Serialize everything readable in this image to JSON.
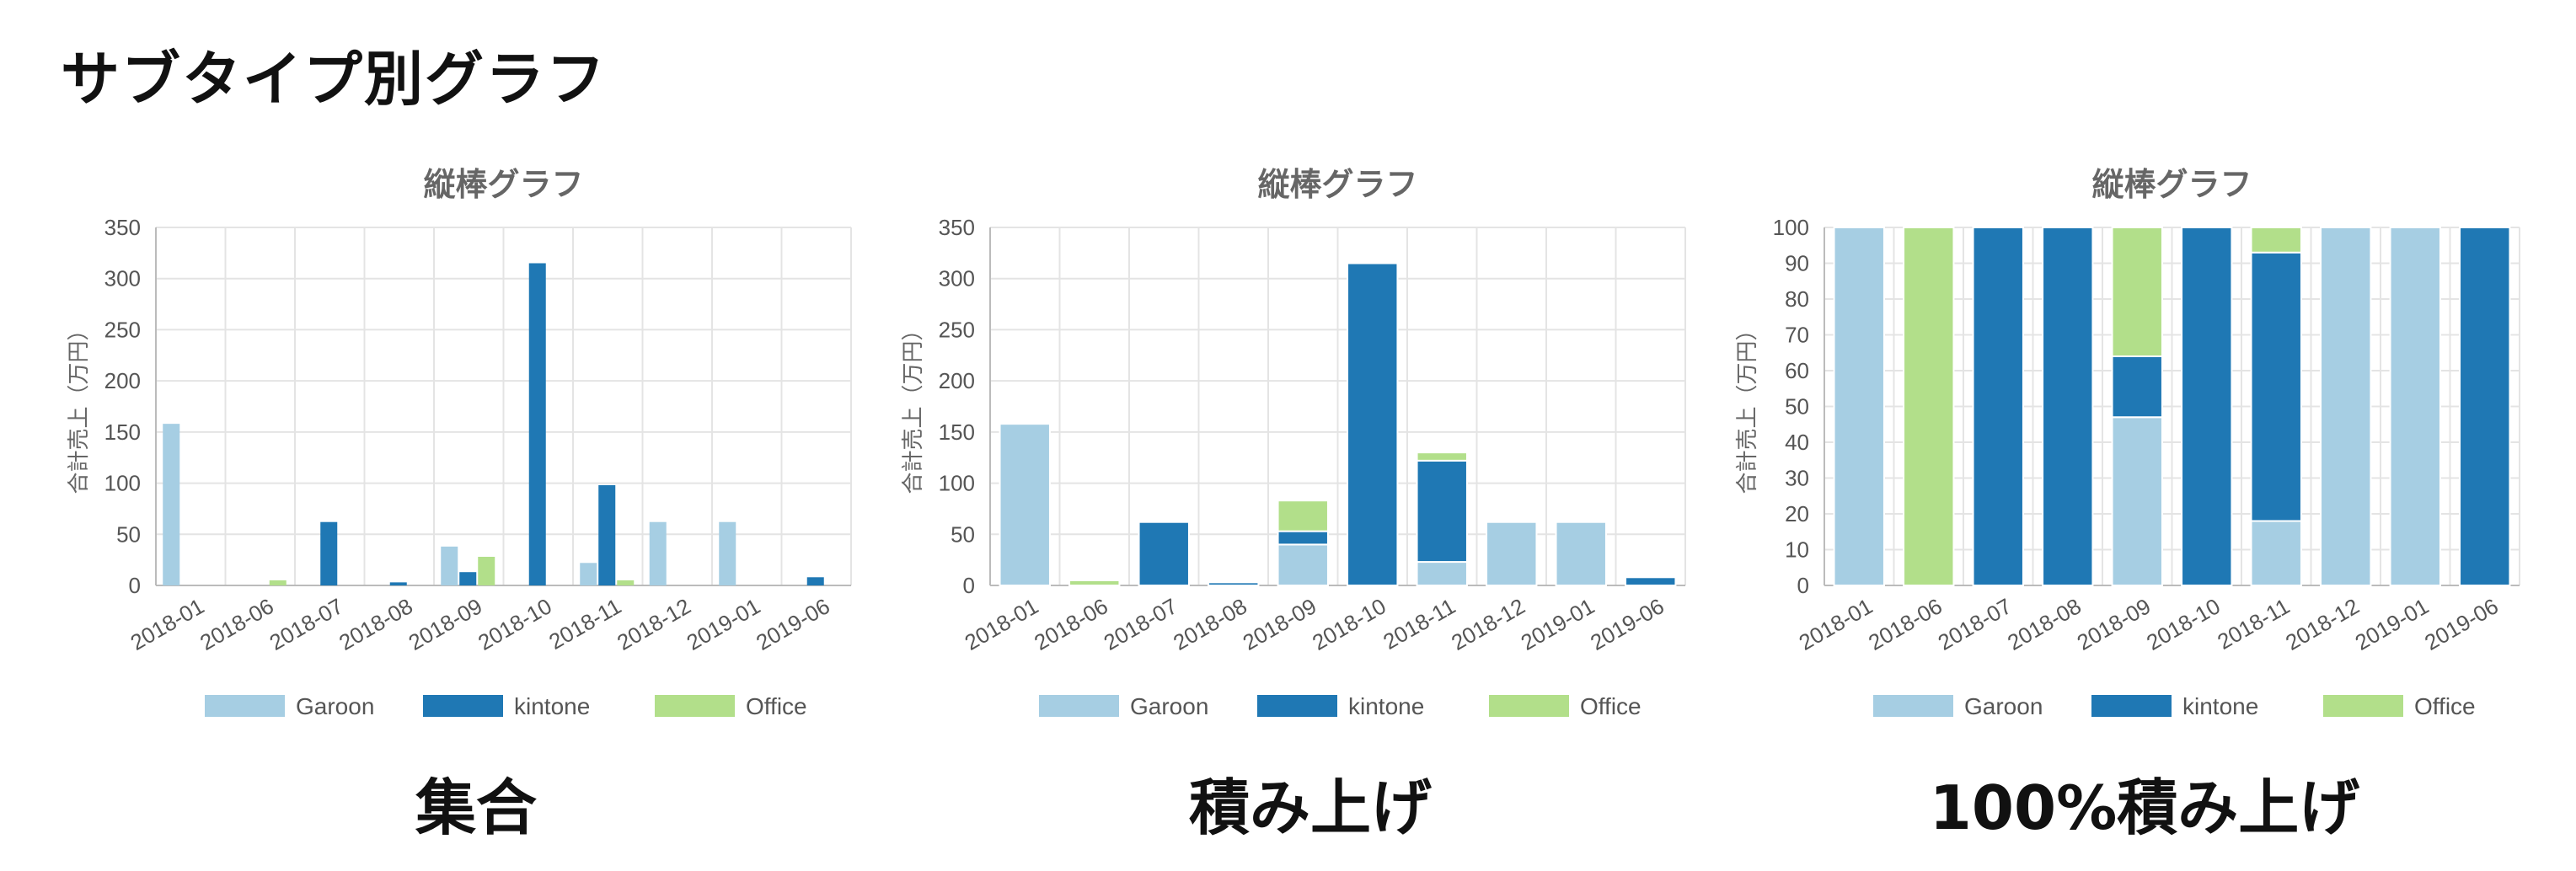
{
  "page": {
    "title": "サブタイプ別グラフ"
  },
  "colors": {
    "Garoon": "#a6cee3",
    "kintone": "#1f78b4",
    "Office": "#b2df8a"
  },
  "chart_data": [
    {
      "type": "bar",
      "mode": "grouped",
      "title": "縦棒グラフ",
      "caption": "集合",
      "ylabel": "合計売上（万円）",
      "ylim": [
        0,
        350
      ],
      "yticks": [
        0,
        50,
        100,
        150,
        200,
        250,
        300,
        350
      ],
      "categories": [
        "2018-01",
        "2018-06",
        "2018-07",
        "2018-08",
        "2018-09",
        "2018-10",
        "2018-11",
        "2018-12",
        "2019-01",
        "2019-06"
      ],
      "series": [
        {
          "name": "Garoon",
          "values": [
            158,
            0,
            0,
            0,
            38,
            0,
            22,
            62,
            62,
            0
          ]
        },
        {
          "name": "kintone",
          "values": [
            0,
            0,
            62,
            3,
            13,
            315,
            98,
            0,
            0,
            8
          ]
        },
        {
          "name": "Office",
          "values": [
            0,
            5,
            0,
            0,
            28,
            0,
            5,
            0,
            0,
            0
          ]
        }
      ],
      "legend": "bottom"
    },
    {
      "type": "bar",
      "mode": "stacked",
      "title": "縦棒グラフ",
      "caption": "積み上げ",
      "ylabel": "合計売上（万円）",
      "ylim": [
        0,
        350
      ],
      "yticks": [
        0,
        50,
        100,
        150,
        200,
        250,
        300,
        350
      ],
      "categories": [
        "2018-01",
        "2018-06",
        "2018-07",
        "2018-08",
        "2018-09",
        "2018-10",
        "2018-11",
        "2018-12",
        "2019-01",
        "2019-06"
      ],
      "series": [
        {
          "name": "Garoon",
          "values": [
            158,
            0,
            0,
            0,
            40,
            0,
            23,
            62,
            62,
            0
          ]
        },
        {
          "name": "kintone",
          "values": [
            0,
            0,
            62,
            3,
            13,
            315,
            99,
            0,
            0,
            8
          ]
        },
        {
          "name": "Office",
          "values": [
            0,
            5,
            0,
            0,
            30,
            0,
            8,
            0,
            0,
            0
          ]
        }
      ],
      "legend": "bottom"
    },
    {
      "type": "bar",
      "mode": "percent",
      "title": "縦棒グラフ",
      "caption": "100%積み上げ",
      "ylabel": "合計売上（万円）",
      "ylim": [
        0,
        100
      ],
      "yticks": [
        0,
        10,
        20,
        30,
        40,
        50,
        60,
        70,
        80,
        90,
        100
      ],
      "categories": [
        "2018-01",
        "2018-06",
        "2018-07",
        "2018-08",
        "2018-09",
        "2018-10",
        "2018-11",
        "2018-12",
        "2019-01",
        "2019-06"
      ],
      "series": [
        {
          "name": "Garoon",
          "values": [
            100,
            0,
            0,
            0,
            47,
            0,
            18,
            100,
            100,
            0
          ]
        },
        {
          "name": "kintone",
          "values": [
            0,
            0,
            100,
            100,
            17,
            100,
            75,
            0,
            0,
            100
          ]
        },
        {
          "name": "Office",
          "values": [
            0,
            100,
            0,
            0,
            36,
            0,
            7,
            0,
            0,
            0
          ]
        }
      ],
      "legend": "bottom"
    }
  ]
}
